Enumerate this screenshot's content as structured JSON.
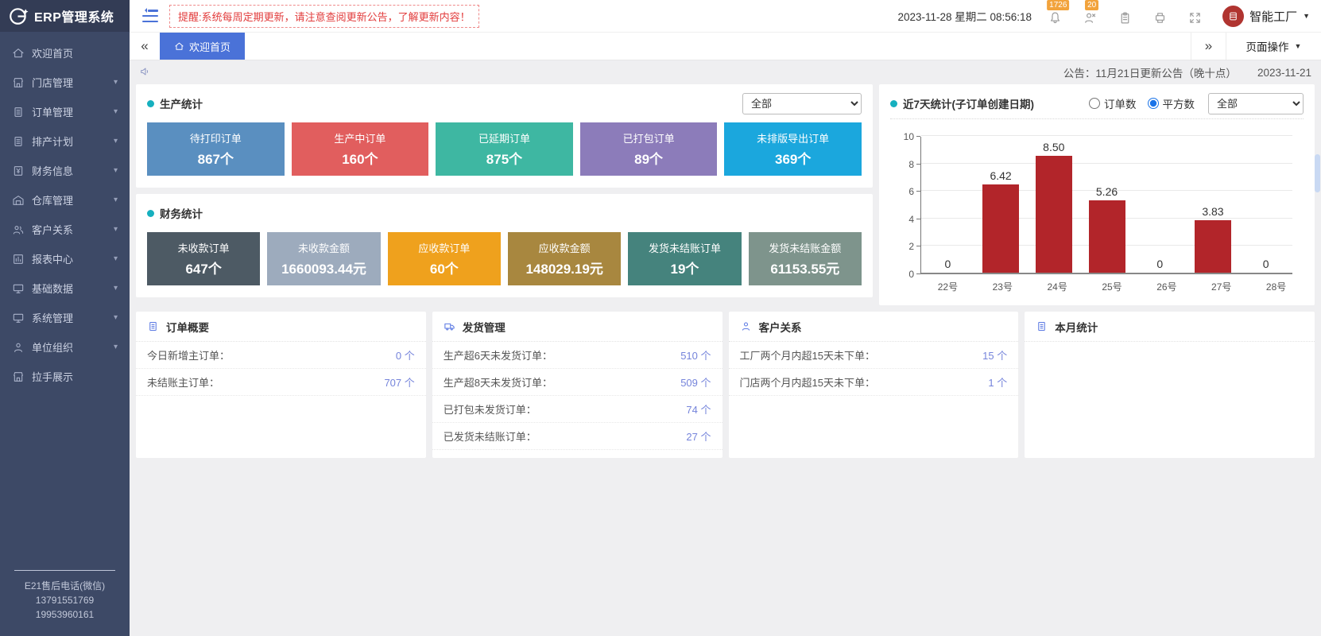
{
  "icons": {
    "collapse_left": "«",
    "expand_right": "»",
    "caret_down": "▼",
    "menu_arrow": "▾"
  },
  "header": {
    "logo_text": "ERP管理系统",
    "alert_text": "提醒:系统每周定期更新，请注意查阅更新公告，了解更新内容！",
    "datetime": "2023-11-28 星期二  08:56:18",
    "bell_badge": "1726",
    "user_badge": "20",
    "account_name": "智能工厂"
  },
  "sidebar": {
    "items": [
      {
        "label": "欢迎首页",
        "icon": "home",
        "arrow": false
      },
      {
        "label": "门店管理",
        "icon": "store",
        "arrow": true
      },
      {
        "label": "订单管理",
        "icon": "doc",
        "arrow": true
      },
      {
        "label": "排产计划",
        "icon": "doc",
        "arrow": true
      },
      {
        "label": "财务信息",
        "icon": "finance",
        "arrow": true
      },
      {
        "label": "仓库管理",
        "icon": "warehouse",
        "arrow": true
      },
      {
        "label": "客户关系",
        "icon": "people",
        "arrow": true
      },
      {
        "label": "报表中心",
        "icon": "report",
        "arrow": true
      },
      {
        "label": "基础数据",
        "icon": "monitor",
        "arrow": true
      },
      {
        "label": "系统管理",
        "icon": "monitor",
        "arrow": true
      },
      {
        "label": "单位组织",
        "icon": "person",
        "arrow": true
      },
      {
        "label": "拉手展示",
        "icon": "store",
        "arrow": false
      }
    ],
    "footer": {
      "line1": "E21售后电话(微信)",
      "line2": "13791551769",
      "line3": "19953960161"
    }
  },
  "tabbar": {
    "active_tab": "欢迎首页",
    "page_actions": "页面操作"
  },
  "notice": {
    "text": "公告：11月21日更新公告（晚十点）",
    "date": "2023-11-21"
  },
  "production": {
    "title": "生产统计",
    "filter": "全部",
    "cards": [
      {
        "label": "待打印订单",
        "value": "867个",
        "color": "#5a8fc0"
      },
      {
        "label": "生产中订单",
        "value": "160个",
        "color": "#e15e5e"
      },
      {
        "label": "已延期订单",
        "value": "875个",
        "color": "#3eb7a2"
      },
      {
        "label": "已打包订单",
        "value": "89个",
        "color": "#8c7cba"
      },
      {
        "label": "未排版导出订单",
        "value": "369个",
        "color": "#1ba7dd"
      }
    ]
  },
  "finance": {
    "title": "财务统计",
    "cards": [
      {
        "label": "未收款订单",
        "value": "647个",
        "color": "#4d5a64"
      },
      {
        "label": "未收款金额",
        "value": "1660093.44元",
        "color": "#9dabbd"
      },
      {
        "label": "应收款订单",
        "value": "60个",
        "color": "#efa11d"
      },
      {
        "label": "应收款金额",
        "value": "148029.19元",
        "color": "#a8873f"
      },
      {
        "label": "发货未结账订单",
        "value": "19个",
        "color": "#45837d"
      },
      {
        "label": "发货未结账金额",
        "value": "61153.55元",
        "color": "#7e948c"
      }
    ]
  },
  "chart_panel": {
    "title": "近7天统计(子订单创建日期)",
    "radio_options": [
      {
        "label": "订单数",
        "checked": false
      },
      {
        "label": "平方数",
        "checked": true
      }
    ],
    "filter": "全部"
  },
  "chart_data": {
    "type": "bar",
    "title": "近7天统计(子订单创建日期)",
    "categories": [
      "22号",
      "23号",
      "24号",
      "25号",
      "26号",
      "27号",
      "28号"
    ],
    "values": [
      0,
      6.42,
      8.5,
      5.26,
      0,
      3.83,
      0
    ],
    "value_labels": [
      "0",
      "6.42",
      "8.50",
      "5.26",
      "0",
      "3.83",
      "0"
    ],
    "bar_color": "#b2252a",
    "xlabel": "",
    "ylabel": "",
    "ylim": [
      0,
      10
    ],
    "yticks": [
      0,
      2,
      4,
      6,
      8,
      10
    ],
    "grid": true,
    "legend": false
  },
  "panels": [
    {
      "title": "订单概要",
      "icon": "doc",
      "rows": [
        {
          "label": "今日新增主订单：",
          "value": "0 个"
        },
        {
          "label": "未结账主订单：",
          "value": "707 个"
        }
      ]
    },
    {
      "title": "发货管理",
      "icon": "truck",
      "rows": [
        {
          "label": "生产超6天未发货订单：",
          "value": "510 个"
        },
        {
          "label": "生产超8天未发货订单：",
          "value": "509 个"
        },
        {
          "label": "已打包未发货订单：",
          "value": "74 个"
        },
        {
          "label": "已发货未结账订单：",
          "value": "27 个"
        }
      ]
    },
    {
      "title": "客户关系",
      "icon": "person",
      "rows": [
        {
          "label": "工厂两个月内超15天未下单：",
          "value": "15 个"
        },
        {
          "label": "门店两个月内超15天未下单：",
          "value": "1 个"
        }
      ]
    },
    {
      "title": "本月统计",
      "icon": "doc",
      "rows": []
    }
  ]
}
